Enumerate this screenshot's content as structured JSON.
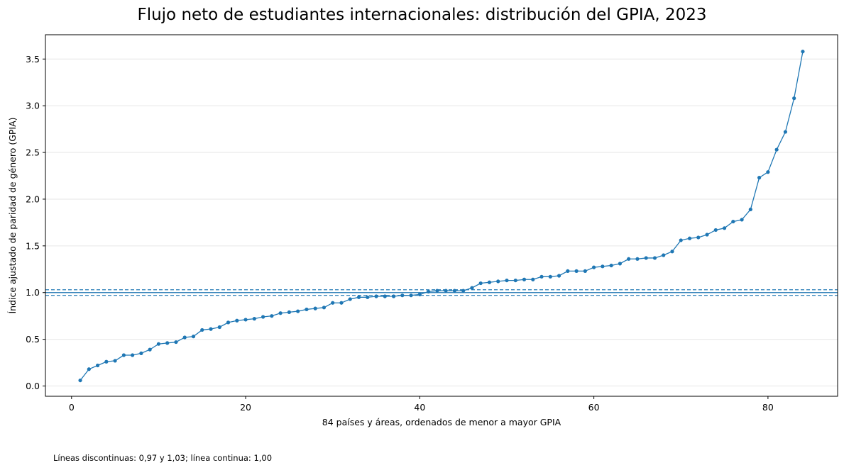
{
  "chart_data": {
    "type": "line",
    "title": "Flujo neto de estudiantes internacionales: distribución del GPIA, 2023",
    "xlabel": "84 países y áreas, ordenados de menor a mayor GPIA",
    "ylabel": "Índice ajustado de paridad de género (GPIA)",
    "xlim": [
      -3,
      88
    ],
    "ylim": [
      -0.11,
      3.76
    ],
    "x_ticks": [
      0,
      20,
      40,
      60,
      80
    ],
    "y_ticks": [
      0.0,
      0.5,
      1.0,
      1.5,
      2.0,
      2.5,
      3.0,
      3.5
    ],
    "x_tick_labels": [
      "0",
      "20",
      "40",
      "60",
      "80"
    ],
    "y_tick_labels": [
      "0.0",
      "0.5",
      "1.0",
      "1.5",
      "2.0",
      "2.5",
      "3.0",
      "3.5"
    ],
    "grid": "horizontal",
    "series": [
      {
        "color": "#1f77b4",
        "x": [
          1,
          2,
          3,
          4,
          5,
          6,
          7,
          8,
          9,
          10,
          11,
          12,
          13,
          14,
          15,
          16,
          17,
          18,
          19,
          20,
          21,
          22,
          23,
          24,
          25,
          26,
          27,
          28,
          29,
          30,
          31,
          32,
          33,
          34,
          35,
          36,
          37,
          38,
          39,
          40,
          41,
          42,
          43,
          44,
          45,
          46,
          47,
          48,
          49,
          50,
          51,
          52,
          53,
          54,
          55,
          56,
          57,
          58,
          59,
          60,
          61,
          62,
          63,
          64,
          65,
          66,
          67,
          68,
          69,
          70,
          71,
          72,
          73,
          74,
          75,
          76,
          77,
          78,
          79,
          80,
          81,
          82,
          83,
          84
        ],
        "values": [
          0.06,
          0.18,
          0.22,
          0.26,
          0.27,
          0.33,
          0.33,
          0.35,
          0.39,
          0.45,
          0.46,
          0.47,
          0.52,
          0.53,
          0.6,
          0.61,
          0.63,
          0.68,
          0.7,
          0.71,
          0.72,
          0.74,
          0.75,
          0.78,
          0.79,
          0.8,
          0.82,
          0.83,
          0.84,
          0.89,
          0.89,
          0.93,
          0.95,
          0.95,
          0.96,
          0.96,
          0.96,
          0.97,
          0.97,
          0.98,
          1.01,
          1.02,
          1.02,
          1.02,
          1.02,
          1.05,
          1.1,
          1.11,
          1.12,
          1.13,
          1.13,
          1.14,
          1.14,
          1.17,
          1.17,
          1.18,
          1.23,
          1.23,
          1.23,
          1.27,
          1.28,
          1.29,
          1.31,
          1.36,
          1.36,
          1.37,
          1.37,
          1.4,
          1.44,
          1.56,
          1.58,
          1.59,
          1.62,
          1.67,
          1.69,
          1.76,
          1.78,
          1.89,
          2.23,
          2.29,
          2.53,
          2.72,
          3.08,
          3.58
        ]
      }
    ],
    "reference_lines": [
      {
        "y": 0.97,
        "style": "dashed"
      },
      {
        "y": 1.0,
        "style": "solid"
      },
      {
        "y": 1.03,
        "style": "dashed"
      }
    ]
  },
  "footnote": "Líneas discontinuas: 0,97 y 1,03; línea continua: 1,00",
  "colors": {
    "series": "#1f77b4",
    "grid": "#e6e6e6",
    "axes": "#000000"
  }
}
